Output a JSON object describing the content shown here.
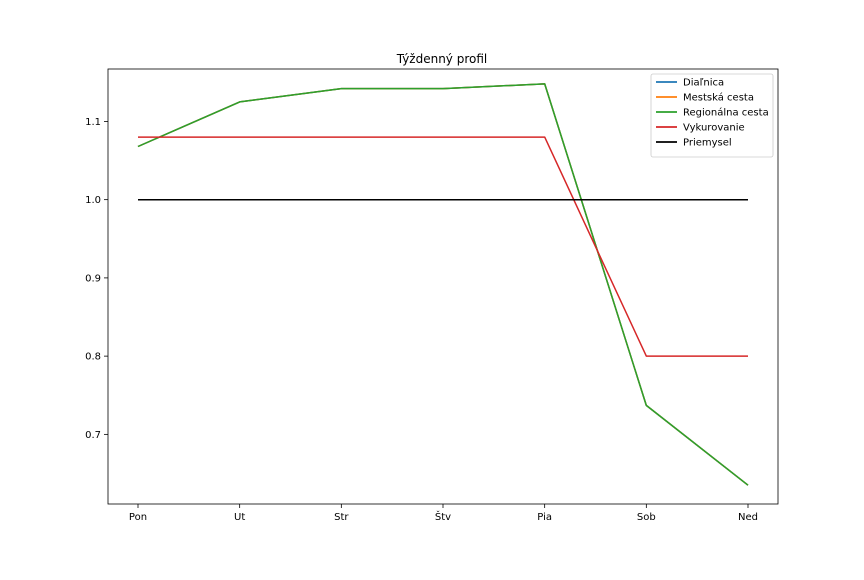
{
  "chart_data": {
    "type": "line",
    "title": "Týždenný profil",
    "xlabel": "",
    "ylabel": "",
    "categories": [
      "Pon",
      "Ut",
      "Str",
      "Štv",
      "Pia",
      "Sob",
      "Ned"
    ],
    "yticks": [
      0.7,
      0.8,
      0.9,
      1.0,
      1.1
    ],
    "ytick_labels": [
      "0.7",
      "0.8",
      "0.9",
      "1.0",
      "1.1"
    ],
    "ylim": [
      0.611,
      1.167
    ],
    "grid": false,
    "legend_position": "top-right",
    "series": [
      {
        "name": "Diaľnica",
        "color": "#1f77b4",
        "values": [
          1.068,
          1.125,
          1.142,
          1.142,
          1.148,
          0.737,
          0.635
        ]
      },
      {
        "name": "Mestská cesta",
        "color": "#ff7f0e",
        "values": [
          1.068,
          1.125,
          1.142,
          1.142,
          1.148,
          0.737,
          0.635
        ]
      },
      {
        "name": "Regionálna cesta",
        "color": "#2ca02c",
        "values": [
          1.068,
          1.125,
          1.142,
          1.142,
          1.148,
          0.737,
          0.635
        ]
      },
      {
        "name": "Vykurovanie",
        "color": "#d62728",
        "values": [
          1.08,
          1.08,
          1.08,
          1.08,
          1.08,
          0.8,
          0.8
        ]
      },
      {
        "name": "Priemysel",
        "color": "#000000",
        "values": [
          1.0,
          1.0,
          1.0,
          1.0,
          1.0,
          1.0,
          1.0
        ]
      }
    ]
  }
}
